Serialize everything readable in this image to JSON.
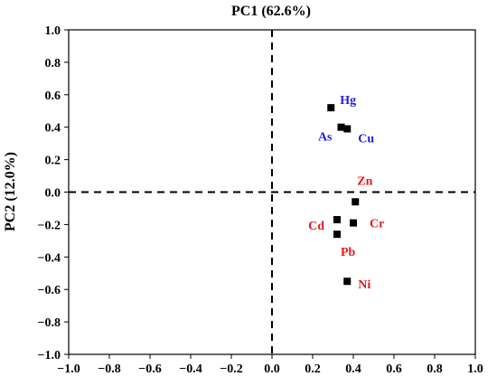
{
  "chart_data": {
    "type": "scatter",
    "title": "PC1 (62.6%)",
    "xlabel": "",
    "ylabel": "PC2 (12.0%)",
    "xlim": [
      -1.0,
      1.0
    ],
    "ylim": [
      -1.0,
      1.0
    ],
    "x_ticks": [
      "−1.0",
      "−0.8",
      "−0.6",
      "−0.4",
      "−0.2",
      "0.0",
      "0.2",
      "0.4",
      "0.6",
      "0.8",
      "1.0"
    ],
    "y_ticks": [
      "1.0",
      "0.8",
      "0.6",
      "0.4",
      "0.2",
      "0.0",
      "−0.2",
      "−0.4",
      "−0.6",
      "−0.8",
      "−1.0"
    ],
    "grid": false,
    "reference_lines": {
      "x": 0,
      "y": 0
    },
    "points": [
      {
        "label": "Hg",
        "x": 0.29,
        "y": 0.52,
        "color": "#1f1fd6"
      },
      {
        "label": "As",
        "x": 0.34,
        "y": 0.4,
        "color": "#1f1fd6"
      },
      {
        "label": "Cu",
        "x": 0.37,
        "y": 0.39,
        "color": "#1f1fd6"
      },
      {
        "label": "Zn",
        "x": 0.41,
        "y": -0.06,
        "color": "#e01c1c"
      },
      {
        "label": "Cd",
        "x": 0.32,
        "y": -0.17,
        "color": "#e01c1c"
      },
      {
        "label": "Cr",
        "x": 0.4,
        "y": -0.19,
        "color": "#e01c1c"
      },
      {
        "label": "Pb",
        "x": 0.32,
        "y": -0.26,
        "color": "#e01c1c"
      },
      {
        "label": "Ni",
        "x": 0.37,
        "y": -0.55,
        "color": "#e01c1c"
      }
    ]
  }
}
